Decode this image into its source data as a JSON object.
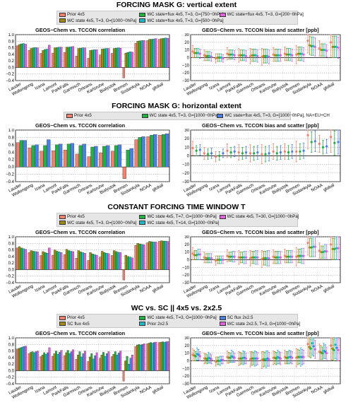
{
  "stations": [
    "Lauder",
    "Wollongong",
    "Izana",
    "Lamont",
    "ParkFalls",
    "Garmisch",
    "Orleans",
    "Karlsruhe",
    "Bialystok",
    "Bremen",
    "Sodankyla",
    "NOAA",
    "global"
  ],
  "left_title": "GEOS−Chem vs. TCCON correlation",
  "right_title": "GEOS−Chem vs. TCCON bias and scatter [ppb]",
  "left_yticks": [
    "1.0",
    "0.8",
    "0.6",
    "0.4",
    "0.2",
    "0.0",
    "−0.2",
    "−0.4"
  ],
  "right_yticks": [
    "30",
    "20",
    "10",
    "0",
    "−10",
    "−20",
    "−30"
  ],
  "panels": [
    {
      "title": "FORCING MASK G: vertical extent",
      "legend": [
        {
          "label": "Prior 4x5",
          "color": "#f08070"
        },
        {
          "label": "WC state 4x5, T=3,  G=[1000−0hPa]",
          "color": "#a08a10"
        },
        {
          "label": "WC state+flux 4x5, T=3,  G=[750−0hPa]",
          "color": "#22b040"
        },
        {
          "label": "WC state+flux 4x5, T=3,  G=[500−0hPa]",
          "color": "#20b8c8"
        },
        {
          "label": "WC state+flux 4x5, T=3,  G=[200−0hPa]",
          "color": "#e060e0"
        }
      ],
      "chart_data": {
        "type": "bar",
        "title": "GEOS−Chem vs. TCCON correlation",
        "ylim": [
          -0.4,
          1.0
        ],
        "series": [
          {
            "name": "Prior 4x5",
            "values": [
              0.66,
              0.52,
              0.43,
              0.44,
              0.46,
              0.35,
              0.28,
              0.38,
              0.43,
              -0.32,
              0.74,
              0.82,
              0.86
            ]
          },
          {
            "name": "WC state 4x5, T=3,  G=[1000−0hPa]",
            "values": [
              0.7,
              0.58,
              0.52,
              0.6,
              0.62,
              0.58,
              0.52,
              0.56,
              0.58,
              0.44,
              0.8,
              0.86,
              0.88
            ]
          },
          {
            "name": "WC state+flux 4x5, T=3,  G=[750−0hPa]",
            "values": [
              0.72,
              0.6,
              0.55,
              0.61,
              0.62,
              0.59,
              0.53,
              0.57,
              0.59,
              0.46,
              0.81,
              0.86,
              0.89
            ]
          },
          {
            "name": "WC state+flux 4x5, T=3,  G=[500−0hPa]",
            "values": [
              0.73,
              0.61,
              0.56,
              0.62,
              0.63,
              0.6,
              0.54,
              0.58,
              0.6,
              0.48,
              0.82,
              0.87,
              0.9
            ]
          },
          {
            "name": "WC state+flux 4x5, T=3,  G=[200−0hPa]",
            "values": [
              0.71,
              0.6,
              0.68,
              0.62,
              0.64,
              0.6,
              0.54,
              0.58,
              0.59,
              0.47,
              0.82,
              0.88,
              0.89
            ]
          }
        ],
        "bias": [
          [
            8,
            3,
            -1,
            5,
            3,
            2,
            1,
            4,
            5,
            4,
            22,
            12,
            20
          ],
          [
            6,
            2,
            0,
            4,
            3,
            3,
            2,
            3,
            4,
            5,
            16,
            10,
            14
          ],
          [
            6,
            2,
            0,
            4,
            3,
            3,
            2,
            3,
            4,
            5,
            15,
            10,
            14
          ],
          [
            6,
            2,
            0,
            4,
            3,
            3,
            2,
            3,
            4,
            5,
            15,
            10,
            14
          ],
          [
            5,
            1,
            -1,
            3,
            2,
            2,
            1,
            3,
            3,
            4,
            14,
            9,
            13
          ]
        ],
        "scatter": [
          [
            8,
            7,
            6,
            8,
            9,
            10,
            11,
            9,
            9,
            12,
            16,
            10,
            18
          ],
          [
            6,
            6,
            5,
            6,
            7,
            8,
            9,
            8,
            8,
            9,
            12,
            8,
            14
          ],
          [
            6,
            6,
            5,
            6,
            7,
            8,
            9,
            8,
            8,
            9,
            12,
            8,
            14
          ],
          [
            6,
            6,
            5,
            6,
            7,
            8,
            9,
            8,
            8,
            9,
            12,
            8,
            14
          ],
          [
            6,
            6,
            5,
            6,
            7,
            8,
            9,
            8,
            8,
            9,
            12,
            8,
            14
          ]
        ],
        "bias_ylim": [
          -30,
          30
        ]
      }
    },
    {
      "title": "FORCING MASK G: horizontal extent",
      "legend": [
        {
          "label": "Prior 4x5",
          "color": "#f08070"
        },
        {
          "label": "WC state 4x5, T=3,  G=[1000−0hPa]",
          "color": "#22b040"
        },
        {
          "label": "WC state+flux 4x5, T=3,  G=[1000−0hPa], NA+EU+CH",
          "color": "#4a80e0"
        }
      ],
      "chart_data": {
        "type": "bar",
        "title": "GEOS−Chem vs. TCCON correlation",
        "ylim": [
          -0.4,
          1.0
        ],
        "series": [
          {
            "name": "Prior 4x5",
            "values": [
              0.66,
              0.52,
              0.43,
              0.44,
              0.46,
              0.35,
              0.28,
              0.38,
              0.43,
              -0.32,
              0.74,
              0.82,
              0.86
            ]
          },
          {
            "name": "WC state 4x5, T=3,  G=[1000−0hPa]",
            "values": [
              0.72,
              0.58,
              0.58,
              0.6,
              0.62,
              0.58,
              0.54,
              0.56,
              0.58,
              0.46,
              0.8,
              0.86,
              0.88
            ]
          },
          {
            "name": "WC state+flux 4x5, T=3,  G=[1000−0hPa], NA+EU+CH",
            "values": [
              0.72,
              0.6,
              0.74,
              0.62,
              0.64,
              0.62,
              0.56,
              0.58,
              0.6,
              0.5,
              0.82,
              0.88,
              0.9
            ]
          }
        ],
        "bias": [
          [
            9,
            3,
            -1,
            6,
            4,
            3,
            2,
            5,
            5,
            5,
            24,
            14,
            22
          ],
          [
            6,
            2,
            0,
            4,
            3,
            3,
            2,
            3,
            4,
            5,
            16,
            10,
            15
          ],
          [
            7,
            3,
            3,
            5,
            4,
            4,
            3,
            4,
            5,
            6,
            17,
            11,
            16
          ]
        ],
        "scatter": [
          [
            8,
            7,
            6,
            8,
            9,
            10,
            11,
            9,
            9,
            12,
            16,
            10,
            18
          ],
          [
            6,
            6,
            5,
            6,
            7,
            8,
            9,
            8,
            8,
            9,
            12,
            8,
            14
          ],
          [
            6,
            6,
            5,
            6,
            7,
            8,
            9,
            8,
            8,
            9,
            12,
            8,
            14
          ]
        ],
        "bias_ylim": [
          -30,
          30
        ]
      }
    },
    {
      "title": "CONSTANT FORCING TIME WINDOW T",
      "legend": [
        {
          "label": "Prior 4x5",
          "color": "#f08070"
        },
        {
          "label": "WC state 4x5, T=3,  G=[1000−0hPa]",
          "color": "#a08a10"
        },
        {
          "label": "WC state 4x5, T=7,  G=[1000−0hPa]",
          "color": "#22b040"
        },
        {
          "label": "WC state 4x5, T=14, G=[1000−0hPa]",
          "color": "#20b8c8"
        },
        {
          "label": "WC state 4x5, T=30, G=[1000−0hPa]",
          "color": "#e060e0"
        }
      ],
      "chart_data": {
        "type": "bar",
        "title": "GEOS−Chem vs. TCCON correlation",
        "ylim": [
          -0.4,
          1.0
        ],
        "series": [
          {
            "name": "Prior 4x5",
            "values": [
              0.66,
              0.52,
              0.43,
              0.44,
              0.46,
              0.35,
              0.28,
              0.38,
              0.43,
              -0.32,
              0.74,
              0.82,
              0.86
            ]
          },
          {
            "name": "WC state 4x5, T=3,  G=[1000−0hPa]",
            "values": [
              0.7,
              0.58,
              0.55,
              0.6,
              0.62,
              0.58,
              0.52,
              0.56,
              0.58,
              0.44,
              0.8,
              0.86,
              0.88
            ]
          },
          {
            "name": "WC state 4x5, T=7,  G=[1000−0hPa]",
            "values": [
              0.66,
              0.56,
              0.52,
              0.56,
              0.58,
              0.54,
              0.48,
              0.52,
              0.55,
              0.4,
              0.78,
              0.85,
              0.87
            ]
          },
          {
            "name": "WC state 4x5, T=14, G=[1000−0hPa]",
            "values": [
              0.64,
              0.55,
              0.5,
              0.54,
              0.56,
              0.52,
              0.46,
              0.5,
              0.53,
              0.38,
              0.77,
              0.84,
              0.87
            ]
          },
          {
            "name": "WC state 4x5, T=30, G=[1000−0hPa]",
            "values": [
              0.62,
              0.54,
              0.66,
              0.52,
              0.55,
              0.5,
              0.44,
              0.49,
              0.52,
              0.36,
              0.76,
              0.84,
              0.86
            ]
          }
        ],
        "bias": [
          [
            8,
            3,
            -1,
            5,
            3,
            2,
            1,
            4,
            5,
            4,
            22,
            12,
            20
          ],
          [
            6,
            2,
            0,
            4,
            3,
            3,
            2,
            3,
            4,
            5,
            16,
            10,
            14
          ],
          [
            6,
            2,
            0,
            4,
            3,
            3,
            2,
            3,
            4,
            5,
            16,
            10,
            14
          ],
          [
            7,
            2,
            0,
            4,
            3,
            3,
            2,
            3,
            4,
            5,
            17,
            11,
            15
          ],
          [
            7,
            2,
            0,
            4,
            3,
            3,
            2,
            3,
            4,
            5,
            17,
            11,
            15
          ]
        ],
        "scatter": [
          [
            8,
            7,
            6,
            8,
            9,
            10,
            11,
            9,
            9,
            12,
            16,
            10,
            18
          ],
          [
            6,
            6,
            5,
            6,
            7,
            8,
            9,
            8,
            8,
            9,
            12,
            8,
            14
          ],
          [
            6,
            6,
            5,
            6,
            7,
            8,
            9,
            8,
            8,
            9,
            12,
            8,
            14
          ],
          [
            7,
            6,
            5,
            7,
            8,
            9,
            10,
            8,
            8,
            10,
            13,
            9,
            15
          ],
          [
            7,
            6,
            5,
            7,
            8,
            9,
            10,
            8,
            8,
            10,
            13,
            9,
            15
          ]
        ],
        "bias_ylim": [
          -30,
          30
        ]
      }
    },
    {
      "title": "WC vs. SC || 4x5 vs. 2x2.5",
      "legend": [
        {
          "label": "Prior 4x5",
          "color": "#f08070"
        },
        {
          "label": "SC flux 4x5",
          "color": "#a08a10"
        },
        {
          "label": "WC state 4x5, T=3,  G=[1000−0hPa]",
          "color": "#22b040"
        },
        {
          "label": "Prior 2x2.5",
          "color": "#20b8c8"
        },
        {
          "label": "SC flux 2x2.5",
          "color": "#4a80e0"
        },
        {
          "label": "WC state 2x2.5, T=3,  G=[1000−0hPa]",
          "color": "#e060e0"
        }
      ],
      "chart_data": {
        "type": "bar",
        "title": "GEOS−Chem vs. TCCON correlation",
        "ylim": [
          -0.4,
          1.0
        ],
        "series": [
          {
            "name": "Prior 4x5",
            "values": [
              0.66,
              0.52,
              0.43,
              0.44,
              0.46,
              0.35,
              0.28,
              0.38,
              0.43,
              -0.32,
              0.74,
              0.82,
              0.86
            ]
          },
          {
            "name": "SC flux 4x5",
            "values": [
              0.68,
              0.56,
              0.48,
              0.52,
              0.55,
              0.48,
              0.42,
              0.48,
              0.5,
              0.3,
              0.78,
              0.84,
              0.87
            ]
          },
          {
            "name": "WC state 4x5, T=3,  G=[1000−0hPa]",
            "values": [
              0.7,
              0.58,
              0.55,
              0.6,
              0.62,
              0.58,
              0.52,
              0.56,
              0.58,
              0.44,
              0.8,
              0.86,
              0.88
            ]
          },
          {
            "name": "Prior 2x2.5",
            "values": [
              0.72,
              0.55,
              0.5,
              0.5,
              0.52,
              0.42,
              0.36,
              0.44,
              0.48,
              0.2,
              0.78,
              0.84,
              0.87
            ]
          },
          {
            "name": "SC flux 2x2.5",
            "values": [
              0.74,
              0.58,
              0.55,
              0.56,
              0.58,
              0.52,
              0.46,
              0.52,
              0.54,
              0.38,
              0.8,
              0.86,
              0.88
            ]
          },
          {
            "name": "WC state 2x2.5, T=3,  G=[1000−0hPa]",
            "values": [
              0.75,
              0.6,
              0.7,
              0.62,
              0.64,
              0.6,
              0.55,
              0.58,
              0.6,
              0.48,
              0.82,
              0.87,
              0.89
            ]
          }
        ],
        "bias": [
          [
            8,
            3,
            -1,
            5,
            3,
            2,
            1,
            4,
            5,
            4,
            22,
            12,
            20
          ],
          [
            7,
            3,
            0,
            4,
            3,
            3,
            2,
            4,
            4,
            5,
            18,
            11,
            16
          ],
          [
            6,
            2,
            0,
            4,
            3,
            3,
            2,
            3,
            4,
            5,
            16,
            10,
            14
          ],
          [
            9,
            4,
            0,
            6,
            4,
            3,
            2,
            5,
            5,
            5,
            23,
            13,
            21
          ],
          [
            8,
            3,
            1,
            5,
            4,
            3,
            3,
            4,
            5,
            5,
            19,
            12,
            17
          ],
          [
            6,
            2,
            1,
            4,
            3,
            3,
            2,
            3,
            4,
            5,
            15,
            10,
            14
          ]
        ],
        "scatter": [
          [
            8,
            7,
            6,
            8,
            9,
            10,
            11,
            9,
            9,
            12,
            16,
            10,
            18
          ],
          [
            7,
            6,
            5,
            7,
            8,
            9,
            10,
            8,
            8,
            10,
            13,
            9,
            15
          ],
          [
            6,
            6,
            5,
            6,
            7,
            8,
            9,
            8,
            8,
            9,
            12,
            8,
            14
          ],
          [
            8,
            7,
            6,
            8,
            9,
            10,
            11,
            9,
            9,
            12,
            16,
            10,
            18
          ],
          [
            7,
            6,
            5,
            7,
            8,
            9,
            10,
            8,
            8,
            10,
            13,
            9,
            15
          ],
          [
            6,
            6,
            5,
            6,
            7,
            8,
            9,
            8,
            8,
            9,
            12,
            8,
            14
          ]
        ],
        "bias_ylim": [
          -30,
          30
        ]
      }
    }
  ]
}
